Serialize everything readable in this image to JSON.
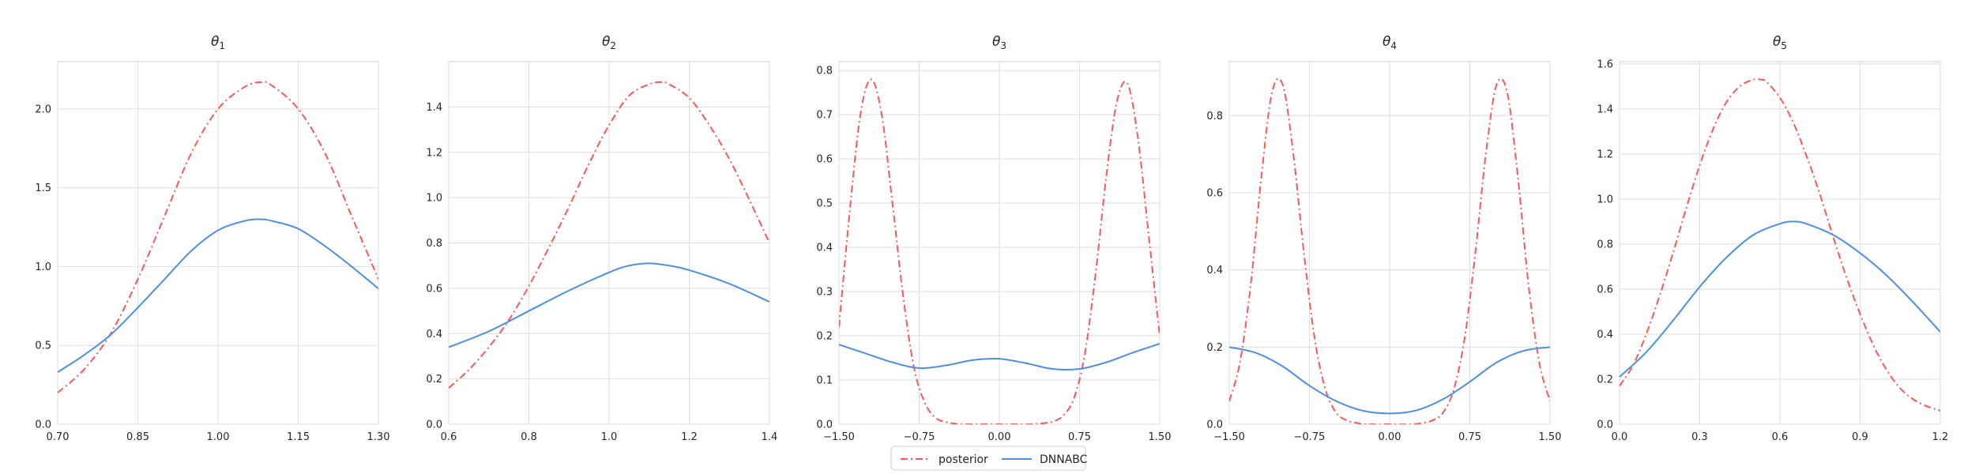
{
  "legend": {
    "placement": "bottom-center",
    "entries": [
      {
        "label": "posterior",
        "color": "#ff5555",
        "style": "dashdot"
      },
      {
        "label": "DNNABC",
        "color": "#4c8fe8",
        "style": "solid"
      }
    ]
  },
  "chart_data": [
    {
      "type": "line",
      "title": "θ",
      "title_sub": "1",
      "grid": true,
      "xlim": [
        0.7,
        1.3
      ],
      "ylim": [
        0,
        2.3
      ],
      "xticks": [
        "0.70",
        "0.85",
        "1.00",
        "1.15",
        "1.30"
      ],
      "yticks": [
        "0.0",
        "0.5",
        "1.0",
        "1.5",
        "2.0"
      ],
      "series": [
        {
          "name": "posterior",
          "color": "#ff5555",
          "style": "dashdot",
          "x": [
            0.7,
            0.75,
            0.8,
            0.85,
            0.9,
            0.95,
            1.0,
            1.05,
            1.08,
            1.1,
            1.15,
            1.2,
            1.25,
            1.3
          ],
          "y": [
            0.2,
            0.35,
            0.58,
            0.92,
            1.32,
            1.72,
            2.0,
            2.14,
            2.17,
            2.15,
            2.0,
            1.72,
            1.32,
            0.92
          ]
        },
        {
          "name": "DNNABC",
          "color": "#4c8fe8",
          "style": "solid",
          "x": [
            0.7,
            0.75,
            0.8,
            0.85,
            0.9,
            0.95,
            1.0,
            1.05,
            1.08,
            1.1,
            1.15,
            1.2,
            1.25,
            1.3
          ],
          "y": [
            0.33,
            0.44,
            0.57,
            0.74,
            0.92,
            1.1,
            1.23,
            1.29,
            1.3,
            1.29,
            1.24,
            1.13,
            1.0,
            0.86
          ]
        }
      ]
    },
    {
      "type": "line",
      "title": "θ",
      "title_sub": "2",
      "grid": true,
      "xlim": [
        0.6,
        1.4
      ],
      "ylim": [
        0,
        1.6
      ],
      "xticks": [
        "0.6",
        "0.8",
        "1.0",
        "1.2",
        "1.4"
      ],
      "yticks": [
        "0.0",
        "0.2",
        "0.4",
        "0.6",
        "0.8",
        "1.0",
        "1.2",
        "1.4"
      ],
      "series": [
        {
          "name": "posterior",
          "color": "#ff5555",
          "style": "dashdot",
          "x": [
            0.6,
            0.65,
            0.7,
            0.75,
            0.8,
            0.85,
            0.9,
            0.95,
            1.0,
            1.05,
            1.1,
            1.13,
            1.15,
            1.2,
            1.25,
            1.3,
            1.35,
            1.4
          ],
          "y": [
            0.16,
            0.24,
            0.34,
            0.46,
            0.61,
            0.78,
            0.96,
            1.15,
            1.32,
            1.45,
            1.5,
            1.51,
            1.5,
            1.44,
            1.32,
            1.17,
            0.99,
            0.8
          ]
        },
        {
          "name": "DNNABC",
          "color": "#4c8fe8",
          "style": "solid",
          "x": [
            0.6,
            0.7,
            0.8,
            0.9,
            1.0,
            1.05,
            1.1,
            1.15,
            1.2,
            1.3,
            1.4
          ],
          "y": [
            0.34,
            0.41,
            0.5,
            0.59,
            0.67,
            0.7,
            0.71,
            0.7,
            0.68,
            0.62,
            0.54
          ]
        }
      ]
    },
    {
      "type": "line",
      "title": "θ",
      "title_sub": "3",
      "grid": true,
      "xlim": [
        -1.5,
        1.5
      ],
      "ylim": [
        0,
        0.82
      ],
      "xticks": [
        "−1.50",
        "−0.75",
        "0.00",
        "0.75",
        "1.50"
      ],
      "yticks": [
        "0.0",
        "0.1",
        "0.2",
        "0.3",
        "0.4",
        "0.5",
        "0.6",
        "0.7",
        "0.8"
      ],
      "series": [
        {
          "name": "posterior",
          "color": "#ff5555",
          "style": "dashdot",
          "x": [
            -1.5,
            -1.4,
            -1.3,
            -1.2,
            -1.1,
            -1.0,
            -0.9,
            -0.8,
            -0.7,
            -0.6,
            -0.5,
            -0.4,
            -0.3,
            -0.2,
            0.0,
            0.2,
            0.3,
            0.4,
            0.5,
            0.6,
            0.7,
            0.8,
            0.9,
            1.0,
            1.1,
            1.2,
            1.3,
            1.4,
            1.5
          ],
          "y": [
            0.22,
            0.48,
            0.7,
            0.78,
            0.7,
            0.5,
            0.29,
            0.13,
            0.05,
            0.015,
            0.005,
            0.001,
            0.0,
            0.0,
            0.0,
            0.0,
            0.0,
            0.002,
            0.006,
            0.02,
            0.06,
            0.16,
            0.34,
            0.56,
            0.73,
            0.77,
            0.64,
            0.42,
            0.2
          ]
        },
        {
          "name": "DNNABC",
          "color": "#4c8fe8",
          "style": "solid",
          "x": [
            -1.5,
            -1.25,
            -1.0,
            -0.75,
            -0.5,
            -0.25,
            0.0,
            0.25,
            0.5,
            0.75,
            1.0,
            1.25,
            1.5
          ],
          "y": [
            0.18,
            0.16,
            0.14,
            0.127,
            0.133,
            0.145,
            0.148,
            0.138,
            0.125,
            0.125,
            0.14,
            0.162,
            0.182
          ]
        }
      ]
    },
    {
      "type": "line",
      "title": "θ",
      "title_sub": "4",
      "grid": true,
      "xlim": [
        -1.5,
        1.5
      ],
      "ylim": [
        0,
        0.94
      ],
      "xticks": [
        "−1.50",
        "−0.75",
        "0.00",
        "0.75",
        "1.50"
      ],
      "yticks": [
        "0.0",
        "0.2",
        "0.4",
        "0.6",
        "0.8"
      ],
      "series": [
        {
          "name": "posterior",
          "color": "#ff5555",
          "style": "dashdot",
          "x": [
            -1.5,
            -1.4,
            -1.3,
            -1.2,
            -1.1,
            -1.0,
            -0.9,
            -0.8,
            -0.7,
            -0.6,
            -0.5,
            -0.4,
            -0.3,
            -0.2,
            0.0,
            0.2,
            0.3,
            0.4,
            0.5,
            0.6,
            0.7,
            0.8,
            0.9,
            1.0,
            1.1,
            1.2,
            1.3,
            1.4,
            1.5
          ],
          "y": [
            0.06,
            0.16,
            0.36,
            0.64,
            0.86,
            0.88,
            0.7,
            0.44,
            0.22,
            0.09,
            0.03,
            0.01,
            0.003,
            0.0,
            0.0,
            0.0,
            0.003,
            0.01,
            0.03,
            0.09,
            0.22,
            0.44,
            0.7,
            0.88,
            0.86,
            0.64,
            0.36,
            0.16,
            0.06
          ]
        },
        {
          "name": "DNNABC",
          "color": "#4c8fe8",
          "style": "solid",
          "x": [
            -1.5,
            -1.25,
            -1.0,
            -0.75,
            -0.5,
            -0.25,
            0.0,
            0.25,
            0.5,
            0.75,
            1.0,
            1.25,
            1.5
          ],
          "y": [
            0.2,
            0.185,
            0.15,
            0.1,
            0.06,
            0.035,
            0.028,
            0.036,
            0.065,
            0.11,
            0.16,
            0.19,
            0.2
          ]
        }
      ]
    },
    {
      "type": "line",
      "title": "θ",
      "title_sub": "5",
      "grid": true,
      "xlim": [
        0.0,
        1.2
      ],
      "ylim": [
        0,
        1.61
      ],
      "xticks": [
        "0.0",
        "0.3",
        "0.6",
        "0.9",
        "1.2"
      ],
      "yticks": [
        "0.0",
        "0.2",
        "0.4",
        "0.6",
        "0.8",
        "1.0",
        "1.2",
        "1.4",
        "1.6"
      ],
      "series": [
        {
          "name": "posterior",
          "color": "#ff5555",
          "style": "dashdot",
          "x": [
            0.0,
            0.05,
            0.1,
            0.15,
            0.2,
            0.25,
            0.3,
            0.35,
            0.4,
            0.45,
            0.5,
            0.53,
            0.55,
            0.6,
            0.65,
            0.7,
            0.75,
            0.8,
            0.85,
            0.9,
            0.95,
            1.0,
            1.05,
            1.1,
            1.15,
            1.2
          ],
          "y": [
            0.17,
            0.26,
            0.4,
            0.57,
            0.76,
            0.96,
            1.15,
            1.31,
            1.43,
            1.5,
            1.53,
            1.53,
            1.52,
            1.45,
            1.34,
            1.19,
            1.02,
            0.83,
            0.65,
            0.49,
            0.35,
            0.24,
            0.16,
            0.11,
            0.08,
            0.06
          ]
        },
        {
          "name": "DNNABC",
          "color": "#4c8fe8",
          "style": "solid",
          "x": [
            0.0,
            0.1,
            0.2,
            0.3,
            0.4,
            0.5,
            0.6,
            0.65,
            0.7,
            0.8,
            0.9,
            1.0,
            1.1,
            1.2
          ],
          "y": [
            0.21,
            0.32,
            0.46,
            0.61,
            0.74,
            0.84,
            0.89,
            0.9,
            0.89,
            0.84,
            0.76,
            0.66,
            0.54,
            0.41
          ]
        }
      ]
    }
  ]
}
